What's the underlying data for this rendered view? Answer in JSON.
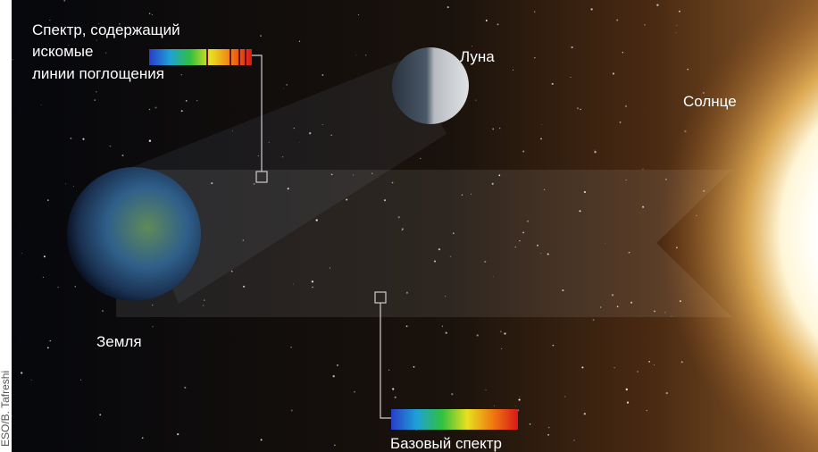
{
  "labels": {
    "spectrum_lines": [
      "Спектр, содержащий",
      "искомые",
      "линии поглощения"
    ],
    "moon": "Луна",
    "sun": "Солнце",
    "earth": "Земля",
    "base_spectrum": "Базовый спектр"
  },
  "credit": "ESO/B. Tafreshi"
}
